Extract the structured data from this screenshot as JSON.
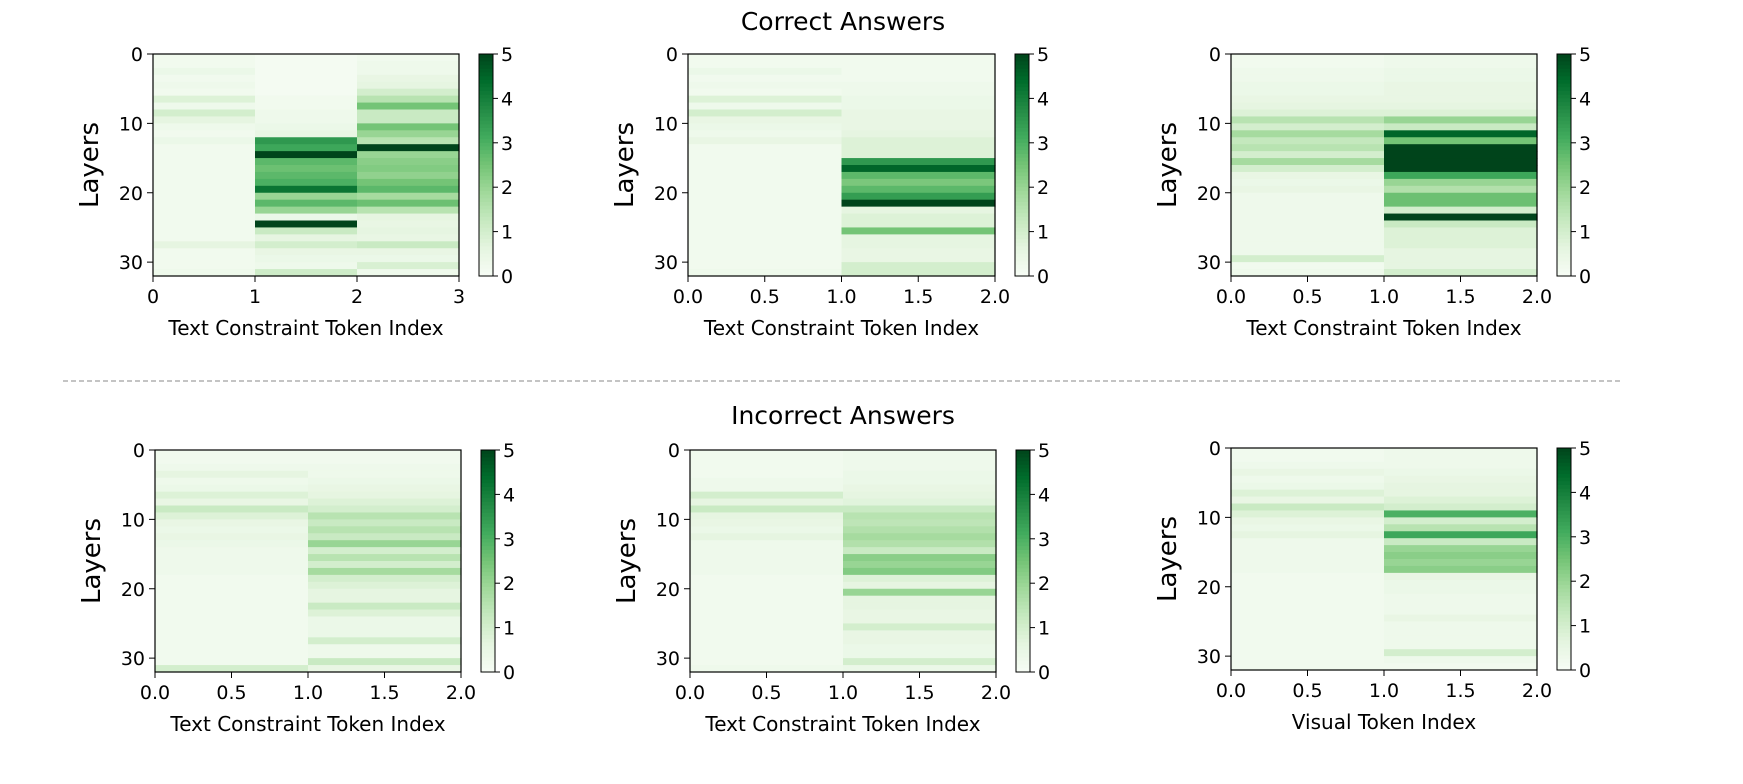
{
  "figure": {
    "section_titles": [
      "Correct Answers",
      "Incorrect Answers"
    ],
    "colormap": [
      "#f7fcf5",
      "#e5f5e0",
      "#c7e9c0",
      "#a1d99b",
      "#74c476",
      "#41ab5d",
      "#238b45",
      "#006d2c",
      "#00441b"
    ],
    "separator_color": "#888888"
  },
  "chart_data": [
    {
      "type": "heatmap",
      "section": "Correct Answers",
      "xlabel": "Text Constraint Token Index",
      "ylabel": "Layers",
      "xlim": [
        0,
        3
      ],
      "ylim": [
        32,
        0
      ],
      "xticks": [
        "0",
        "1",
        "2",
        "3"
      ],
      "yticks": [
        "0",
        "10",
        "20",
        "30"
      ],
      "colorbar": {
        "range": [
          0,
          5
        ],
        "ticks": [
          "0",
          "1",
          "2",
          "3",
          "4",
          "5"
        ]
      },
      "columns": [
        [
          0.2,
          0.2,
          0.4,
          0.2,
          0.3,
          0.2,
          0.8,
          0.3,
          1.0,
          0.6,
          0.3,
          0.2,
          0.4,
          0.2,
          0.2,
          0.2,
          0.2,
          0.2,
          0.2,
          0.2,
          0.2,
          0.2,
          0.2,
          0.2,
          0.2,
          0.2,
          0.2,
          0.6,
          0.2,
          0.2,
          0.2,
          0.3
        ],
        [
          0.1,
          0.1,
          0.1,
          0.1,
          0.1,
          0.1,
          0.2,
          0.2,
          0.3,
          0.3,
          0.4,
          0.5,
          3.5,
          3.2,
          5.0,
          2.8,
          2.6,
          2.8,
          3.0,
          4.2,
          2.0,
          2.8,
          2.0,
          0.4,
          5.0,
          1.2,
          0.6,
          1.0,
          0.5,
          0.4,
          0.3,
          1.1
        ],
        [
          0.2,
          0.3,
          0.3,
          0.5,
          0.6,
          1.0,
          1.5,
          2.5,
          1.2,
          1.2,
          2.5,
          2.0,
          1.5,
          5.0,
          2.0,
          2.2,
          2.3,
          2.1,
          2.5,
          2.8,
          1.8,
          2.6,
          1.5,
          0.6,
          0.5,
          0.6,
          0.5,
          1.2,
          0.5,
          0.4,
          0.9,
          0.3
        ]
      ]
    },
    {
      "type": "heatmap",
      "section": "Correct Answers",
      "xlabel": "Text Constraint Token Index",
      "ylabel": "Layers",
      "xlim": [
        0,
        2
      ],
      "ylim": [
        32,
        0
      ],
      "xticks": [
        "0.0",
        "0.5",
        "1.0",
        "1.5",
        "2.0"
      ],
      "yticks": [
        "0",
        "10",
        "20",
        "30"
      ],
      "colorbar": {
        "range": [
          0,
          5
        ],
        "ticks": [
          "0",
          "1",
          "2",
          "3",
          "4",
          "5"
        ]
      },
      "columns": [
        [
          0.2,
          0.2,
          0.4,
          0.2,
          0.3,
          0.2,
          0.8,
          0.3,
          1.0,
          0.5,
          0.4,
          0.3,
          0.5,
          0.2,
          0.2,
          0.2,
          0.2,
          0.2,
          0.2,
          0.2,
          0.2,
          0.2,
          0.2,
          0.2,
          0.2,
          0.2,
          0.2,
          0.2,
          0.2,
          0.2,
          0.2,
          0.3
        ],
        [
          0.2,
          0.2,
          0.2,
          0.2,
          0.3,
          0.3,
          0.4,
          0.4,
          0.5,
          0.5,
          0.5,
          0.6,
          0.8,
          0.8,
          0.8,
          3.5,
          4.5,
          2.8,
          2.4,
          2.8,
          3.4,
          5.0,
          0.6,
          0.8,
          0.8,
          2.5,
          0.6,
          0.6,
          0.5,
          0.5,
          1.0,
          1.0
        ]
      ]
    },
    {
      "type": "heatmap",
      "section": "Correct Answers",
      "xlabel": "Text Constraint Token Index",
      "ylabel": "Layers",
      "xlim": [
        0,
        2
      ],
      "ylim": [
        32,
        0
      ],
      "xticks": [
        "0.0",
        "0.5",
        "1.0",
        "1.5",
        "2.0"
      ],
      "yticks": [
        "0",
        "10",
        "20",
        "30"
      ],
      "colorbar": {
        "range": [
          0,
          5
        ],
        "ticks": [
          "0",
          "1",
          "2",
          "3",
          "4",
          "5"
        ]
      },
      "columns": [
        [
          0.2,
          0.2,
          0.3,
          0.3,
          0.4,
          0.4,
          0.5,
          0.6,
          0.8,
          1.5,
          1.0,
          1.8,
          1.3,
          1.5,
          1.0,
          1.8,
          1.0,
          0.5,
          0.4,
          0.5,
          0.3,
          0.3,
          0.3,
          0.3,
          0.3,
          0.3,
          0.3,
          0.3,
          0.3,
          1.0,
          0.2,
          0.3
        ],
        [
          0.3,
          0.3,
          0.4,
          0.4,
          0.5,
          0.5,
          0.5,
          0.6,
          0.8,
          2.0,
          1.2,
          4.5,
          2.5,
          5.0,
          5.0,
          5.0,
          5.0,
          3.2,
          2.0,
          1.6,
          2.6,
          2.6,
          1.0,
          5.0,
          1.2,
          0.8,
          0.8,
          0.8,
          0.6,
          0.6,
          0.6,
          1.0
        ]
      ]
    },
    {
      "type": "heatmap",
      "section": "Incorrect Answers",
      "xlabel": "Text Constraint Token Index",
      "ylabel": "Layers",
      "xlim": [
        0,
        2
      ],
      "ylim": [
        32,
        0
      ],
      "xticks": [
        "0.0",
        "0.5",
        "1.0",
        "1.5",
        "2.0"
      ],
      "yticks": [
        "0",
        "10",
        "20",
        "30"
      ],
      "colorbar": {
        "range": [
          0,
          5
        ],
        "ticks": [
          "0",
          "1",
          "2",
          "3",
          "4",
          "5"
        ]
      },
      "columns": [
        [
          0.2,
          0.2,
          0.3,
          0.6,
          0.3,
          0.4,
          0.8,
          0.5,
          1.2,
          0.8,
          0.5,
          0.4,
          0.5,
          0.4,
          0.3,
          0.3,
          0.3,
          0.3,
          0.2,
          0.2,
          0.2,
          0.2,
          0.2,
          0.2,
          0.2,
          0.2,
          0.2,
          0.2,
          0.2,
          0.2,
          0.2,
          1.0
        ],
        [
          0.2,
          0.2,
          0.3,
          0.3,
          0.4,
          0.5,
          0.6,
          0.8,
          1.0,
          1.5,
          1.2,
          1.5,
          1.2,
          2.0,
          1.0,
          1.5,
          1.0,
          1.8,
          1.0,
          0.8,
          0.6,
          0.6,
          1.2,
          0.8,
          0.4,
          0.4,
          0.4,
          1.0,
          0.3,
          0.3,
          1.2,
          0.5
        ]
      ]
    },
    {
      "type": "heatmap",
      "section": "Incorrect Answers",
      "xlabel": "Text Constraint Token Index",
      "ylabel": "Layers",
      "xlim": [
        0,
        2
      ],
      "ylim": [
        32,
        0
      ],
      "xticks": [
        "0.0",
        "0.5",
        "1.0",
        "1.5",
        "2.0"
      ],
      "yticks": [
        "0",
        "10",
        "20",
        "30"
      ],
      "colorbar": {
        "range": [
          0,
          5
        ],
        "ticks": [
          "0",
          "1",
          "2",
          "3",
          "4",
          "5"
        ]
      },
      "columns": [
        [
          0.2,
          0.2,
          0.2,
          0.2,
          0.3,
          0.3,
          1.0,
          0.6,
          1.2,
          0.6,
          0.5,
          0.4,
          0.6,
          0.3,
          0.3,
          0.3,
          0.3,
          0.3,
          0.2,
          0.2,
          0.2,
          0.2,
          0.2,
          0.2,
          0.2,
          0.2,
          0.2,
          0.2,
          0.2,
          0.2,
          0.2,
          0.3
        ],
        [
          0.3,
          0.3,
          0.3,
          0.4,
          0.4,
          0.5,
          0.6,
          0.7,
          1.2,
          1.5,
          1.4,
          1.6,
          1.8,
          1.6,
          1.2,
          2.2,
          2.0,
          2.3,
          0.8,
          0.6,
          2.0,
          0.6,
          0.6,
          0.5,
          0.5,
          1.0,
          0.5,
          0.5,
          0.4,
          0.4,
          1.0,
          0.4
        ]
      ]
    },
    {
      "type": "heatmap",
      "section": "Incorrect Answers",
      "xlabel": "Visual Token Index",
      "ylabel": "Layers",
      "xlim": [
        0,
        2
      ],
      "ylim": [
        32,
        0
      ],
      "xticks": [
        "0.0",
        "0.5",
        "1.0",
        "1.5",
        "2.0"
      ],
      "yticks": [
        "0",
        "10",
        "20",
        "30"
      ],
      "colorbar": {
        "range": [
          0,
          5
        ],
        "ticks": [
          "0",
          "1",
          "2",
          "3",
          "4",
          "5"
        ]
      },
      "columns": [
        [
          0.2,
          0.2,
          0.3,
          0.5,
          0.3,
          0.4,
          0.8,
          0.5,
          1.2,
          0.8,
          0.5,
          0.4,
          0.6,
          0.3,
          0.3,
          0.3,
          0.3,
          0.3,
          0.2,
          0.2,
          0.2,
          0.2,
          0.2,
          0.2,
          0.2,
          0.2,
          0.2,
          0.2,
          0.2,
          0.2,
          0.2,
          0.2
        ],
        [
          0.3,
          0.3,
          0.3,
          0.4,
          0.5,
          0.6,
          0.6,
          0.8,
          1.0,
          3.0,
          1.0,
          1.5,
          3.2,
          1.2,
          2.0,
          2.2,
          2.0,
          2.2,
          0.5,
          0.4,
          0.4,
          0.3,
          0.3,
          0.3,
          0.5,
          0.3,
          0.3,
          0.3,
          0.3,
          1.0,
          0.3,
          0.2
        ]
      ]
    }
  ]
}
